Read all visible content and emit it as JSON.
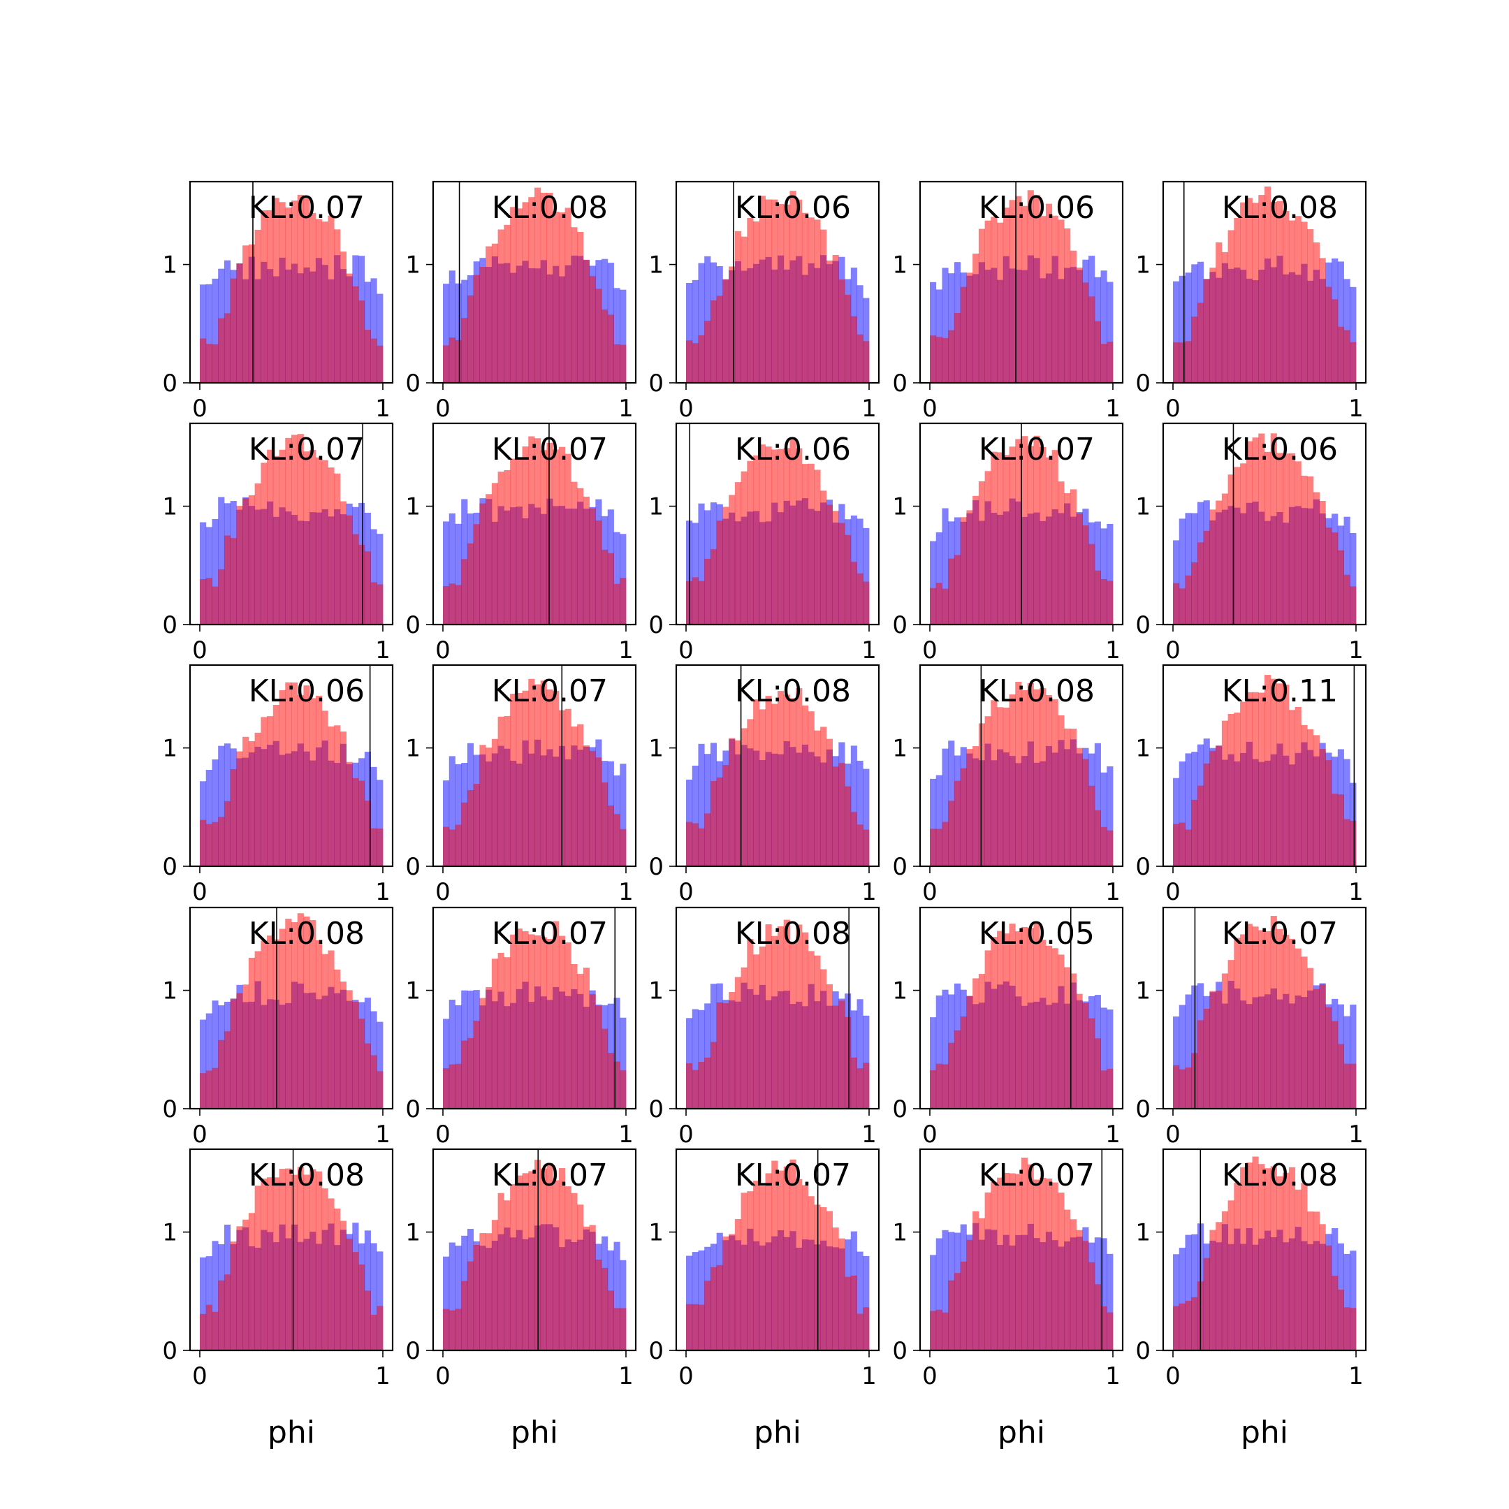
{
  "chart_data": {
    "type": "histogram-grid",
    "rows": 5,
    "cols": 5,
    "bins": 30,
    "xlim": [
      0,
      1
    ],
    "ylim": [
      0,
      1.7
    ],
    "x_ticks": [
      0,
      1
    ],
    "y_ticks": [
      0,
      1
    ],
    "xlabel": "phi",
    "colors": {
      "series_a": "#0000ff",
      "series_b": "#ff0000",
      "overlap": "#7f3fbf",
      "truth_line": "#000000"
    },
    "opacity": 0.5,
    "panels": [
      {
        "label": "KL:0.07",
        "truth": 0.29,
        "peak": 1.57
      },
      {
        "label": "KL:0.08",
        "truth": 0.09,
        "peak": 1.57
      },
      {
        "label": "KL:0.06",
        "truth": 0.26,
        "peak": 1.55
      },
      {
        "label": "KL:0.06",
        "truth": 0.47,
        "peak": 1.57
      },
      {
        "label": "KL:0.08",
        "truth": 0.06,
        "peak": 1.57
      },
      {
        "label": "KL:0.07",
        "truth": 0.89,
        "peak": 1.55
      },
      {
        "label": "KL:0.07",
        "truth": 0.58,
        "peak": 1.55
      },
      {
        "label": "KL:0.06",
        "truth": 0.02,
        "peak": 1.55
      },
      {
        "label": "KL:0.07",
        "truth": 0.5,
        "peak": 1.55
      },
      {
        "label": "KL:0.06",
        "truth": 0.33,
        "peak": 1.55
      },
      {
        "label": "KL:0.06",
        "truth": 0.93,
        "peak": 1.48
      },
      {
        "label": "KL:0.07",
        "truth": 0.65,
        "peak": 1.5
      },
      {
        "label": "KL:0.08",
        "truth": 0.3,
        "peak": 1.48
      },
      {
        "label": "KL:0.08",
        "truth": 0.28,
        "peak": 1.5
      },
      {
        "label": "KL:0.11",
        "truth": 0.99,
        "peak": 1.52
      },
      {
        "label": "KL:0.08",
        "truth": 0.42,
        "peak": 1.57
      },
      {
        "label": "KL:0.07",
        "truth": 0.94,
        "peak": 1.55
      },
      {
        "label": "KL:0.08",
        "truth": 0.89,
        "peak": 1.52
      },
      {
        "label": "KL:0.05",
        "truth": 0.77,
        "peak": 1.55
      },
      {
        "label": "KL:0.07",
        "truth": 0.12,
        "peak": 1.55
      },
      {
        "label": "KL:0.08",
        "truth": 0.51,
        "peak": 1.57
      },
      {
        "label": "KL:0.07",
        "truth": 0.52,
        "peak": 1.55
      },
      {
        "label": "KL:0.07",
        "truth": 0.72,
        "peak": 1.55
      },
      {
        "label": "KL:0.07",
        "truth": 0.94,
        "peak": 1.55
      },
      {
        "label": "KL:0.08",
        "truth": 0.15,
        "peak": 1.57
      }
    ]
  }
}
